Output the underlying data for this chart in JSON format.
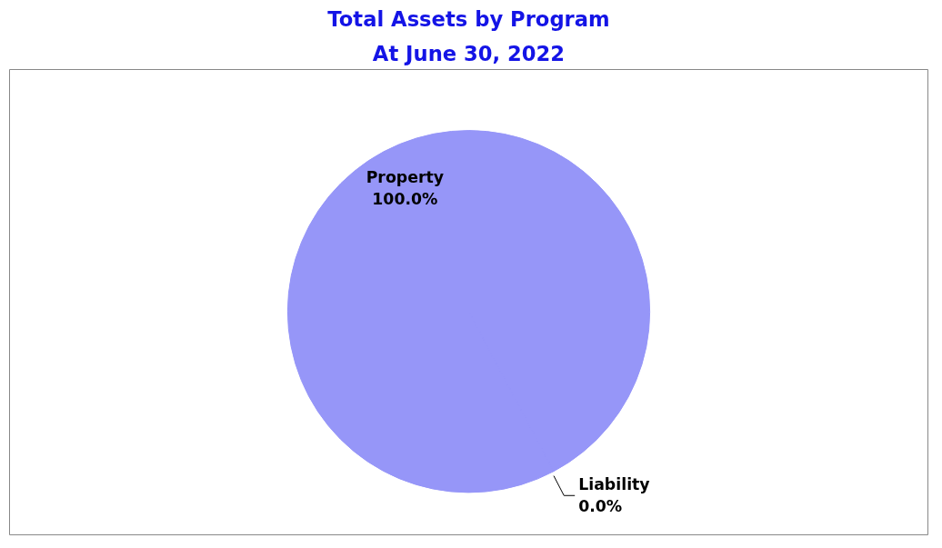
{
  "chart_data": {
    "type": "pie",
    "title": "Total Assets by Program",
    "subtitle": "At June 30, 2022",
    "categories": [
      "Property",
      "Liability"
    ],
    "values": [
      100,
      0
    ],
    "colors": [
      "#9696f8",
      "#b4eef4"
    ],
    "value_labels": [
      "100.0%",
      "0.0%"
    ]
  }
}
